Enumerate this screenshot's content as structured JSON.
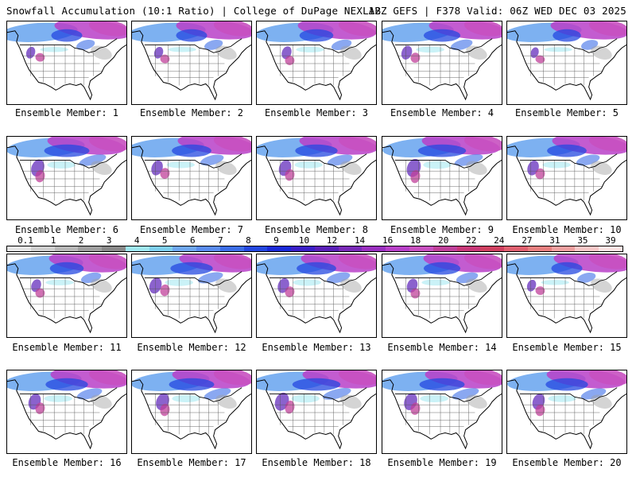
{
  "header": {
    "title": "Snowfall Accumulation (10:1 Ratio) | College of DuPage NEXLAB",
    "run": "12Z GEFS | F378 Valid: 06Z WED DEC 03 2025"
  },
  "members": [
    {
      "label": "Ensemble Member: 1",
      "intensity": 0.55
    },
    {
      "label": "Ensemble Member: 2",
      "intensity": 0.55
    },
    {
      "label": "Ensemble Member: 3",
      "intensity": 0.6
    },
    {
      "label": "Ensemble Member: 4",
      "intensity": 0.65
    },
    {
      "label": "Ensemble Member: 5",
      "intensity": 0.5
    },
    {
      "label": "Ensemble Member: 6",
      "intensity": 0.8
    },
    {
      "label": "Ensemble Member: 7",
      "intensity": 0.7
    },
    {
      "label": "Ensemble Member: 8",
      "intensity": 0.75
    },
    {
      "label": "Ensemble Member: 9",
      "intensity": 0.85
    },
    {
      "label": "Ensemble Member: 10",
      "intensity": 0.7
    },
    {
      "label": "Ensemble Member: 11",
      "intensity": 0.6
    },
    {
      "label": "Ensemble Member: 12",
      "intensity": 0.75
    },
    {
      "label": "Ensemble Member: 13",
      "intensity": 0.7
    },
    {
      "label": "Ensemble Member: 14",
      "intensity": 0.65
    },
    {
      "label": "Ensemble Member: 15",
      "intensity": 0.55
    },
    {
      "label": "Ensemble Member: 16",
      "intensity": 0.75
    },
    {
      "label": "Ensemble Member: 17",
      "intensity": 0.8
    },
    {
      "label": "Ensemble Member: 18",
      "intensity": 0.85
    },
    {
      "label": "Ensemble Member: 19",
      "intensity": 0.8
    },
    {
      "label": "Ensemble Member: 20",
      "intensity": 0.75
    }
  ],
  "legend": {
    "ticks": [
      "0.1",
      "1",
      "2",
      "3",
      "4",
      "5",
      "6",
      "7",
      "8",
      "9",
      "10",
      "12",
      "14",
      "16",
      "18",
      "20",
      "22",
      "24",
      "27",
      "31",
      "35",
      "39"
    ],
    "colors": [
      "#e6e6e6",
      "#cfcfcf",
      "#b8b8b8",
      "#a0a0a0",
      "#8a8a8a",
      "#9fe8f0",
      "#7fd0ee",
      "#6fa8f0",
      "#5a8cf0",
      "#3c6ee8",
      "#2448e0",
      "#1a2ad8",
      "#3b1fc8",
      "#5a1fb8",
      "#7a2ab8",
      "#9a30c0",
      "#b840c8",
      "#c850c0",
      "#c0409a",
      "#c83878",
      "#d04060",
      "#e06070",
      "#e88080",
      "#f0a0a0",
      "#f8c8c8",
      "#fde4e4"
    ]
  }
}
